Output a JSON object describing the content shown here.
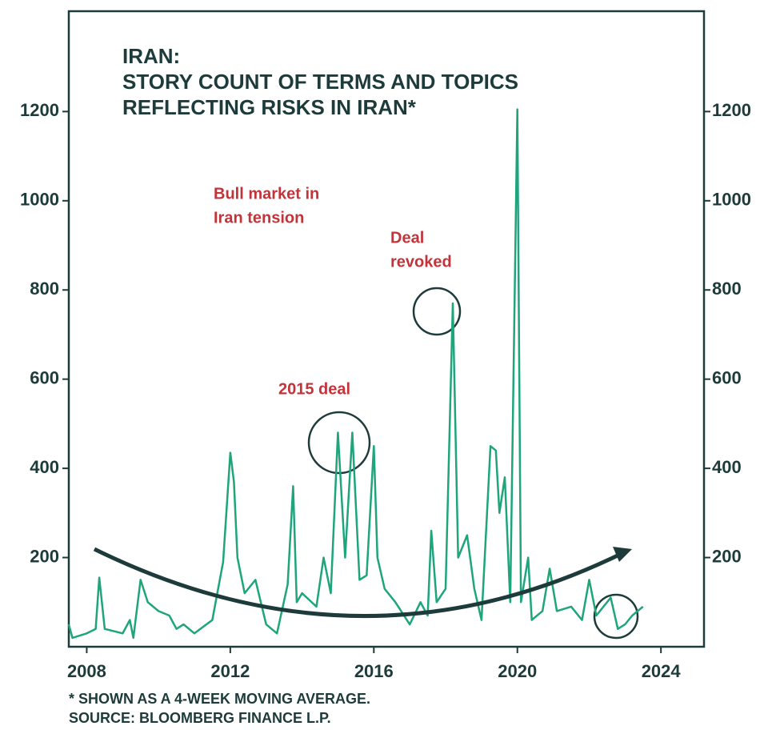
{
  "chart_data": {
    "type": "line",
    "title": [
      "IRAN:",
      "STORY COUNT OF TERMS AND TOPICS",
      "REFLECTING RISKS IN IRAN*"
    ],
    "annotations": [
      [
        "Bull market in",
        "Iran tension"
      ],
      [
        "Deal",
        "revoked"
      ],
      [
        "2015 deal"
      ]
    ],
    "footnotes": [
      "* SHOWN AS A 4-WEEK MOVING AVERAGE.",
      "SOURCE: BLOOMBERG FINANCE L.P."
    ],
    "x": [
      2007.5,
      2007.6,
      2008.0,
      2008.25,
      2008.35,
      2008.5,
      2009.0,
      2009.2,
      2009.3,
      2009.5,
      2009.7,
      2010.0,
      2010.3,
      2010.5,
      2010.7,
      2011.0,
      2011.5,
      2011.8,
      2012.0,
      2012.1,
      2012.2,
      2012.4,
      2012.7,
      2013.0,
      2013.3,
      2013.6,
      2013.75,
      2013.85,
      2014.0,
      2014.4,
      2014.6,
      2014.8,
      2015.0,
      2015.2,
      2015.4,
      2015.6,
      2015.8,
      2016.0,
      2016.1,
      2016.3,
      2016.6,
      2017.0,
      2017.3,
      2017.5,
      2017.6,
      2017.75,
      2018.0,
      2018.2,
      2018.35,
      2018.6,
      2018.8,
      2019.0,
      2019.25,
      2019.4,
      2019.5,
      2019.65,
      2019.8,
      2020.0,
      2020.1,
      2020.3,
      2020.4,
      2020.7,
      2020.9,
      2021.1,
      2021.5,
      2021.8,
      2022.0,
      2022.2,
      2022.6,
      2022.8,
      2023.0,
      2023.2,
      2023.5
    ],
    "values": [
      50,
      20,
      30,
      40,
      155,
      40,
      30,
      60,
      20,
      150,
      100,
      80,
      70,
      40,
      50,
      30,
      60,
      190,
      435,
      370,
      200,
      120,
      150,
      50,
      30,
      140,
      360,
      100,
      120,
      90,
      200,
      120,
      480,
      200,
      480,
      150,
      160,
      450,
      200,
      130,
      100,
      50,
      100,
      70,
      260,
      100,
      130,
      770,
      200,
      250,
      130,
      60,
      450,
      440,
      300,
      380,
      100,
      1205,
      100,
      200,
      60,
      80,
      175,
      80,
      90,
      60,
      150,
      70,
      110,
      40,
      50,
      70,
      90
    ],
    "color": "#1ea57b",
    "xlim": [
      2007.5,
      2025.2
    ],
    "xticks": [
      2008,
      2012,
      2016,
      2020,
      2024
    ],
    "ylim": [
      0,
      1425
    ],
    "yticks": [
      200,
      400,
      600,
      800,
      1000,
      1200
    ]
  }
}
